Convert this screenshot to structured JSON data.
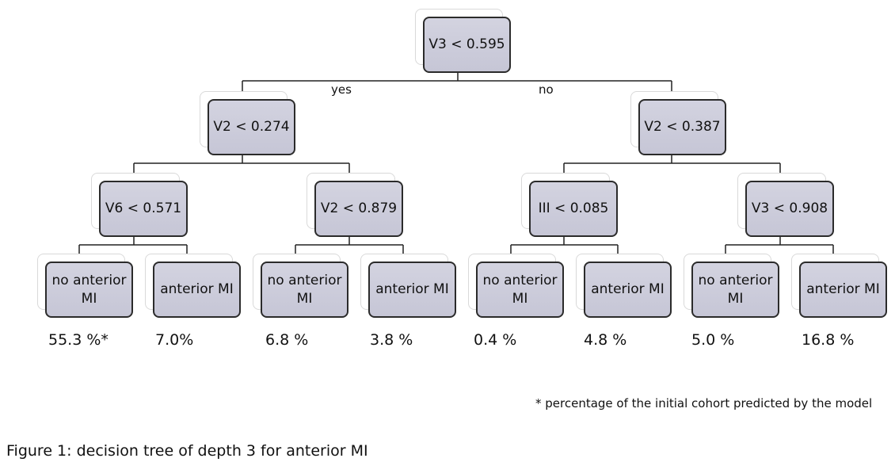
{
  "tree": {
    "root": "V3 < 0.595",
    "edge_labels": {
      "yes": "yes",
      "no": "no"
    },
    "level1": [
      "V2 < 0.274",
      "V2 < 0.387"
    ],
    "level2": [
      "V6 < 0.571",
      "V2 < 0.879",
      "III < 0.085",
      "V3 < 0.908"
    ],
    "leaves": [
      {
        "label": "no anterior MI",
        "percent": "55.3 %*"
      },
      {
        "label": "anterior MI",
        "percent": "7.0%"
      },
      {
        "label": "no anterior MI",
        "percent": "6.8 %"
      },
      {
        "label": "anterior MI",
        "percent": "3.8 %"
      },
      {
        "label": "no anterior MI",
        "percent": "0.4 %"
      },
      {
        "label": "anterior MI",
        "percent": "4.8 %"
      },
      {
        "label": "no anterior MI",
        "percent": "5.0 %"
      },
      {
        "label": "anterior MI",
        "percent": "16.8 %"
      }
    ]
  },
  "footnote": "* percentage of the initial cohort predicted by the model",
  "caption": "Figure 1: decision tree of depth 3 for anterior MI"
}
